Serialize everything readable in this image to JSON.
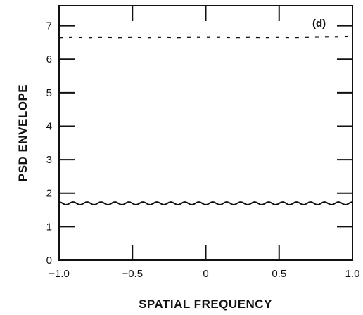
{
  "chart_data": {
    "type": "line",
    "panel_label": "(d)",
    "xlabel": "SPATIAL FREQUENCY",
    "ylabel": "PSD ENVELOPE",
    "xlim": [
      -1.0,
      1.0
    ],
    "ylim": [
      0,
      7.6
    ],
    "x_ticks": [
      -1.0,
      -0.5,
      0,
      0.5,
      1.0
    ],
    "x_tick_labels": [
      "−1.0",
      "−0.5",
      "0",
      "0.5",
      "1.0"
    ],
    "y_ticks": [
      0,
      1,
      2,
      3,
      4,
      5,
      6,
      7
    ],
    "y_tick_labels": [
      "0",
      "1",
      "2",
      "3",
      "4",
      "5",
      "6",
      "7"
    ],
    "grid": false,
    "series": [
      {
        "style": "dashed",
        "x": [
          -1.0,
          -0.9,
          -0.8,
          -0.7,
          -0.6,
          -0.5,
          -0.4,
          -0.3,
          -0.2,
          -0.1,
          0,
          0.1,
          0.2,
          0.3,
          0.4,
          0.5,
          0.6,
          0.7,
          0.8,
          0.9,
          1.0
        ],
        "values": [
          6.65,
          6.66,
          6.65,
          6.66,
          6.65,
          6.66,
          6.65,
          6.66,
          6.65,
          6.66,
          6.66,
          6.66,
          6.65,
          6.66,
          6.65,
          6.66,
          6.65,
          6.66,
          6.67,
          6.67,
          6.68
        ]
      },
      {
        "style": "solid",
        "x": [
          -1.0,
          -0.9,
          -0.8,
          -0.7,
          -0.6,
          -0.5,
          -0.4,
          -0.3,
          -0.2,
          -0.1,
          0,
          0.1,
          0.2,
          0.3,
          0.4,
          0.5,
          0.6,
          0.7,
          0.8,
          0.9,
          1.0
        ],
        "values": [
          1.7,
          1.7,
          1.7,
          1.7,
          1.7,
          1.7,
          1.7,
          1.7,
          1.7,
          1.7,
          1.7,
          1.7,
          1.7,
          1.7,
          1.7,
          1.7,
          1.7,
          1.7,
          1.7,
          1.7,
          1.7
        ],
        "ripple_amplitude": 0.04,
        "ripple_cycles": 21
      }
    ]
  }
}
